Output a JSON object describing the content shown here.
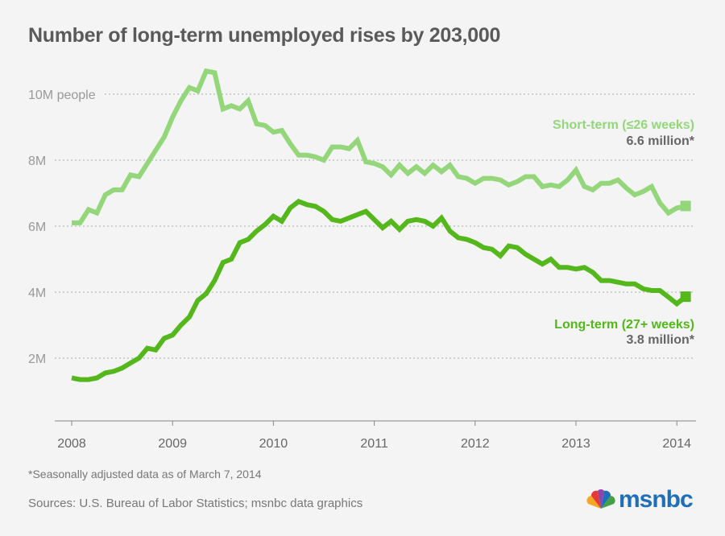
{
  "title": "Number of long-term unemployed rises by 203,000",
  "footnote": "*Seasonally adjusted data as of March 7, 2014",
  "sources": "Sources: U.S. Bureau of Labor Statistics; msnbc data graphics",
  "logo_text": "msnbc",
  "chart_data": {
    "type": "line",
    "title": "Number of long-term unemployed rises by 203,000",
    "xlabel": "",
    "ylabel": "people",
    "x_start": "2008-01",
    "x_end": "2014-02",
    "frequency": "monthly",
    "x_ticks": [
      "2008",
      "2009",
      "2010",
      "2011",
      "2012",
      "2013",
      "2014"
    ],
    "y_ticks": [
      {
        "v": 2,
        "label": "2M"
      },
      {
        "v": 4,
        "label": "4M"
      },
      {
        "v": 6,
        "label": "6M"
      },
      {
        "v": 8,
        "label": "8M"
      },
      {
        "v": 10,
        "label": "10M people"
      }
    ],
    "ylim": [
      0,
      11
    ],
    "grid": true,
    "series": [
      {
        "name": "Short-term (≤26 weeks)",
        "label_value": "6.6 million*",
        "color": "#94d67a",
        "values": [
          6.1,
          6.1,
          6.5,
          6.4,
          6.95,
          7.1,
          7.1,
          7.55,
          7.5,
          7.9,
          8.3,
          8.7,
          9.3,
          9.8,
          10.2,
          10.1,
          10.7,
          10.65,
          9.55,
          9.65,
          9.55,
          9.8,
          9.1,
          9.05,
          8.85,
          8.9,
          8.5,
          8.15,
          8.15,
          8.1,
          8.0,
          8.4,
          8.4,
          8.35,
          8.6,
          7.95,
          7.9,
          7.8,
          7.55,
          7.85,
          7.6,
          7.8,
          7.6,
          7.85,
          7.65,
          7.85,
          7.5,
          7.45,
          7.3,
          7.45,
          7.45,
          7.4,
          7.25,
          7.35,
          7.5,
          7.5,
          7.2,
          7.25,
          7.2,
          7.4,
          7.7,
          7.2,
          7.1,
          7.3,
          7.3,
          7.4,
          7.15,
          6.95,
          7.05,
          7.2,
          6.7,
          6.4,
          6.55,
          6.6
        ]
      },
      {
        "name": "Long-term (27+ weeks)",
        "label_value": "3.8 million*",
        "color": "#54b71b",
        "values": [
          1.4,
          1.35,
          1.35,
          1.4,
          1.55,
          1.6,
          1.7,
          1.85,
          2.0,
          2.3,
          2.25,
          2.6,
          2.7,
          3.0,
          3.25,
          3.75,
          3.95,
          4.35,
          4.9,
          5.0,
          5.5,
          5.6,
          5.85,
          6.05,
          6.3,
          6.15,
          6.55,
          6.75,
          6.65,
          6.6,
          6.45,
          6.2,
          6.15,
          6.25,
          6.35,
          6.45,
          6.2,
          5.95,
          6.15,
          5.9,
          6.15,
          6.2,
          6.15,
          6.0,
          6.25,
          5.85,
          5.65,
          5.6,
          5.5,
          5.35,
          5.3,
          5.1,
          5.4,
          5.35,
          5.15,
          5.0,
          4.85,
          5.0,
          4.75,
          4.75,
          4.7,
          4.75,
          4.6,
          4.35,
          4.35,
          4.3,
          4.25,
          4.25,
          4.1,
          4.05,
          4.05,
          3.85,
          3.65,
          3.85
        ]
      }
    ]
  }
}
